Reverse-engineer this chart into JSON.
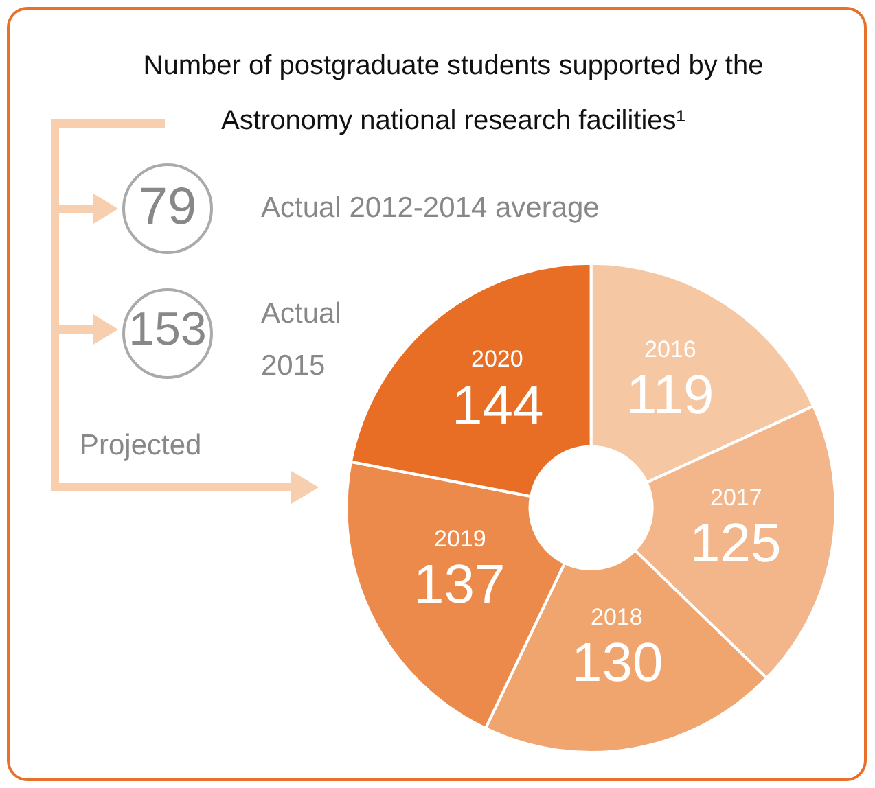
{
  "chart_data": {
    "type": "donut",
    "title": "Number of postgraduate students supported by the Astronomy national research facilities¹",
    "categories": [
      "2016",
      "2017",
      "2018",
      "2019",
      "2020"
    ],
    "values": [
      119,
      125,
      130,
      137,
      144
    ],
    "colors": [
      "#f6c7a3",
      "#f3b68a",
      "#f0a46e",
      "#ec8a4c",
      "#e86d25"
    ],
    "data_labels": true,
    "legend": false,
    "annotations": [
      "79",
      "Actual 2012-2014 average",
      "153",
      "Actual 2015",
      "Projected"
    ]
  }
}
